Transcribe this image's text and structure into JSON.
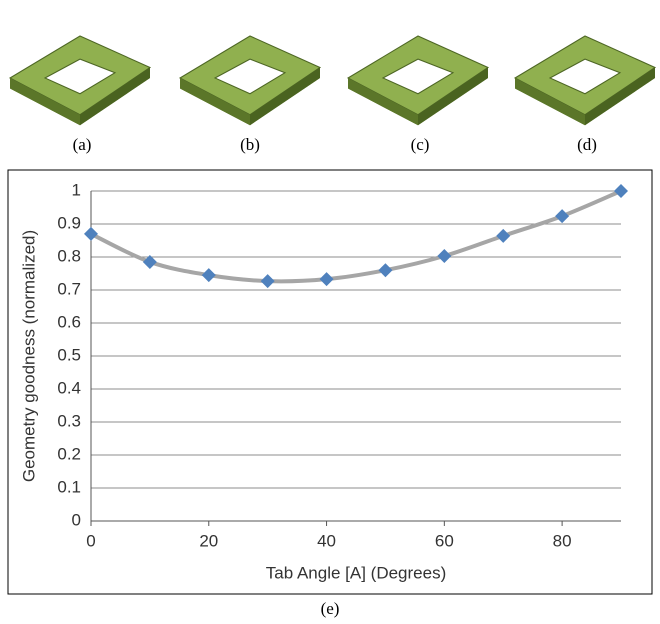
{
  "captions": [
    "(a)",
    "(b)",
    "(c)",
    "(d)",
    "(e)"
  ],
  "chart_data": {
    "type": "line",
    "x_label": "Tab Angle [A] (Degrees)",
    "y_label": "Geometry goodness (normalized)",
    "x": [
      0,
      10,
      20,
      30,
      40,
      50,
      60,
      70,
      80,
      90
    ],
    "series": [
      {
        "color": "#4f81bd",
        "line_color": "#a6a6a6",
        "values": [
          0.87,
          0.785,
          0.745,
          0.727,
          0.733,
          0.76,
          0.803,
          0.864,
          0.924,
          1
        ]
      }
    ],
    "xlim": [
      0,
      90
    ],
    "xticks": [
      0,
      20,
      40,
      60,
      80
    ],
    "ylim": [
      0,
      1
    ],
    "yticks": [
      0,
      0.1,
      0.2,
      0.3,
      0.4,
      0.5,
      0.6,
      0.7,
      0.8,
      0.9,
      1
    ],
    "grid": true,
    "smooth": true,
    "marker": "diamond"
  }
}
